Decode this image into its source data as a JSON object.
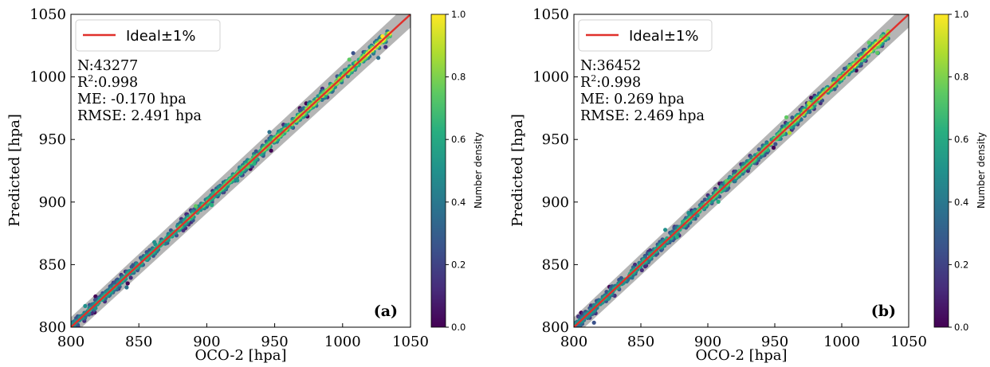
{
  "chart_data": [
    {
      "type": "scatter",
      "panel_label": "(a)",
      "xlabel": "OCO-2 [hpa]",
      "ylabel": "Predicted [hpa]",
      "xlim": [
        800,
        1050
      ],
      "ylim": [
        800,
        1050
      ],
      "xticks": [
        "800",
        "850",
        "900",
        "950",
        "1000",
        "1050"
      ],
      "yticks": [
        "800",
        "850",
        "900",
        "950",
        "1000",
        "1050"
      ],
      "legend": {
        "label": "Ideal±1%",
        "color": "#e0302b",
        "position": "top-left"
      },
      "stats": {
        "n_label": "N:43277",
        "r2_prefix": "R",
        "r2_sup": "2",
        "r2_value": ":0.998",
        "me_label": "ME: -0.170 hpa",
        "rmse_label": "RMSE: 2.491 hpa"
      },
      "data_range": [
        800,
        1035
      ],
      "spread_hpa": 2.5,
      "colormap": "viridis",
      "colorbar": {
        "label": "Number density",
        "ticks": [
          "0.0",
          "0.2",
          "0.4",
          "0.6",
          "0.8",
          "1.0"
        ],
        "range": [
          0,
          1
        ]
      },
      "ideal_line": {
        "x": [
          800,
          1050
        ],
        "y": [
          800,
          1050
        ],
        "band_pct": 1
      },
      "point_count_shown": 900,
      "seed": 7
    },
    {
      "type": "scatter",
      "panel_label": "(b)",
      "xlabel": "OCO-2 [hpa]",
      "ylabel": "Predicted [hpa]",
      "xlim": [
        800,
        1050
      ],
      "ylim": [
        800,
        1050
      ],
      "xticks": [
        "800",
        "850",
        "900",
        "950",
        "1000",
        "1050"
      ],
      "yticks": [
        "800",
        "850",
        "900",
        "950",
        "1000",
        "1050"
      ],
      "legend": {
        "label": "Ideal±1%",
        "color": "#e0302b",
        "position": "top-left"
      },
      "stats": {
        "n_label": "N:36452",
        "r2_prefix": "R",
        "r2_sup": "2",
        "r2_value": ":0.998",
        "me_label": "ME: 0.269 hpa",
        "rmse_label": "RMSE: 2.469 hpa"
      },
      "data_range": [
        800,
        1035
      ],
      "spread_hpa": 2.5,
      "colormap": "viridis",
      "colorbar": {
        "label": "Number density",
        "ticks": [
          "0.0",
          "0.2",
          "0.4",
          "0.6",
          "0.8",
          "1.0"
        ],
        "range": [
          0,
          1
        ]
      },
      "ideal_line": {
        "x": [
          800,
          1050
        ],
        "y": [
          800,
          1050
        ],
        "band_pct": 1
      },
      "point_count_shown": 900,
      "seed": 11
    }
  ]
}
